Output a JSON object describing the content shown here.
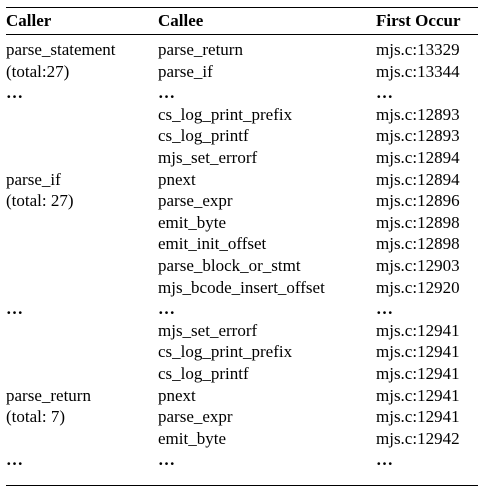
{
  "header": {
    "caller": "Caller",
    "callee": "Callee",
    "first": "First Occur"
  },
  "groups": [
    {
      "caller_line1": "parse_statement",
      "caller_line2": "(total:27)",
      "rows": [
        {
          "callee": "parse_return",
          "first": "mjs.c:13329"
        },
        {
          "callee": "parse_if",
          "first": "mjs.c:13344"
        },
        {
          "callee": "…",
          "first": "…",
          "ellipsis": true
        }
      ]
    },
    {
      "caller_line1": "parse_if",
      "caller_line2": "(total: 27)",
      "rows": [
        {
          "callee": "cs_log_print_prefix",
          "first": "mjs.c:12893"
        },
        {
          "callee": "cs_log_printf",
          "first": "mjs.c:12893"
        },
        {
          "callee": "mjs_set_errorf",
          "first": "mjs.c:12894"
        },
        {
          "callee": "pnext",
          "first": "mjs.c:12894"
        },
        {
          "callee": "parse_expr",
          "first": "mjs.c:12896"
        },
        {
          "callee": "emit_byte",
          "first": "mjs.c:12898"
        },
        {
          "callee": "emit_init_offset",
          "first": "mjs.c:12898"
        },
        {
          "callee": "parse_block_or_stmt",
          "first": "mjs.c:12903"
        },
        {
          "callee": "mjs_bcode_insert_offset",
          "first": "mjs.c:12920"
        },
        {
          "callee": "…",
          "first": "…",
          "ellipsis": true
        }
      ]
    },
    {
      "caller_line1": "parse_return",
      "caller_line2": "(total: 7)",
      "rows": [
        {
          "callee": "mjs_set_errorf",
          "first": "mjs.c:12941"
        },
        {
          "callee": "cs_log_print_prefix",
          "first": "mjs.c:12941"
        },
        {
          "callee": "cs_log_printf",
          "first": "mjs.c:12941"
        },
        {
          "callee": "pnext",
          "first": "mjs.c:12941"
        },
        {
          "callee": "parse_expr",
          "first": "mjs.c:12941"
        },
        {
          "callee": "emit_byte",
          "first": "mjs.c:12942"
        },
        {
          "callee": "…",
          "first": "…",
          "ellipsis": true
        }
      ]
    }
  ],
  "separator_ellipsis": "…"
}
